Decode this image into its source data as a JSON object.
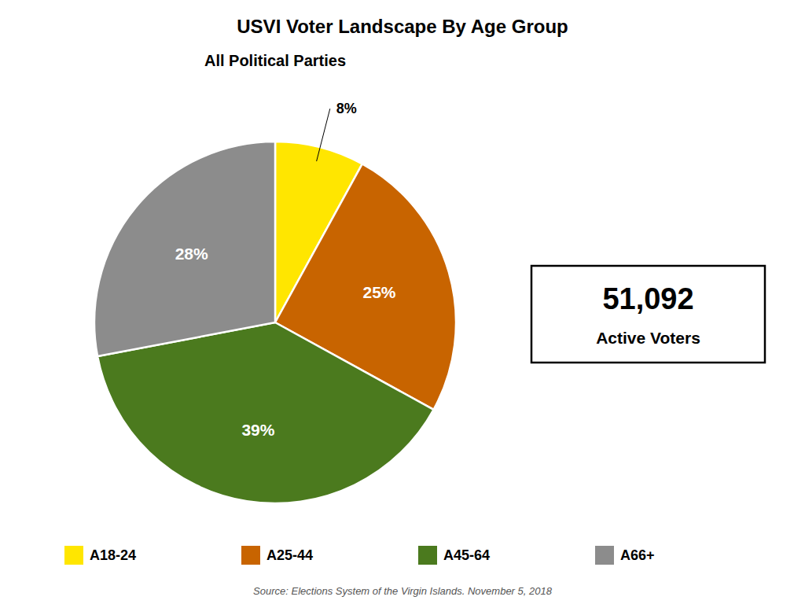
{
  "chart_data": {
    "type": "pie",
    "title": "USVI Voter Landscape By Age Group",
    "subtitle": "All Political Parties",
    "categories": [
      "A18-24",
      "A25-44",
      "A45-64",
      "A66+"
    ],
    "values": [
      8,
      25,
      39,
      28
    ],
    "value_labels": [
      "8%",
      "25%",
      "39%",
      "28%"
    ],
    "colors": [
      "#FFE600",
      "#C86400",
      "#4B7A1E",
      "#8C8C8C"
    ],
    "data_labels": true,
    "legend": "bottom",
    "annotations": [
      "51,092",
      "Active Voters",
      "Source: Elections System of the Virgin Islands.  November 5, 2018"
    ]
  }
}
